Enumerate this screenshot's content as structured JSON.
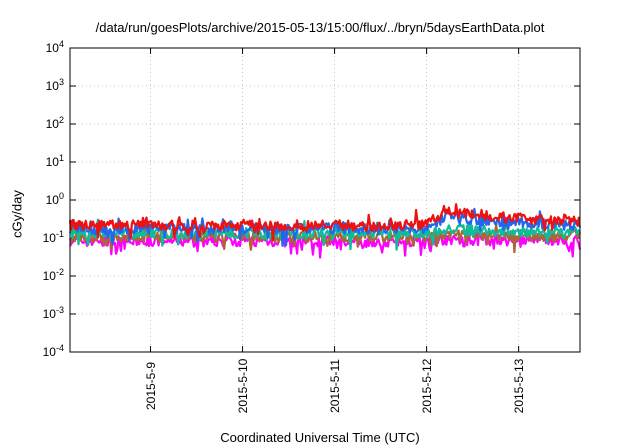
{
  "chart_data": {
    "type": "line",
    "title": "/data/run/goesPlots/archive/2015-05-13/15:00/flux/../bryn/5daysEarthData.plot",
    "xlabel": "Coordinated Universal Time (UTC)",
    "ylabel": "cGy/day",
    "y_scale": "log",
    "ylim": [
      0.0001,
      10000
    ],
    "y_ticks": [
      {
        "base": "10",
        "exp": "4"
      },
      {
        "base": "10",
        "exp": "3"
      },
      {
        "base": "10",
        "exp": "2"
      },
      {
        "base": "10",
        "exp": "1"
      },
      {
        "base": "10",
        "exp": "0"
      },
      {
        "base": "10",
        "exp": "-1"
      },
      {
        "base": "10",
        "exp": "-2"
      },
      {
        "base": "10",
        "exp": "-3"
      },
      {
        "base": "10",
        "exp": "-4"
      }
    ],
    "xlim": [
      "2015-05-08 03:00",
      "2015-05-13 16:00"
    ],
    "x_ticks": [
      "2015-5-9",
      "2015-5-10",
      "2015-5-11",
      "2015-5-12",
      "2015-5-13"
    ],
    "grid": true,
    "x": [
      "2015-05-08 03:00",
      "2015-05-08 12:00",
      "2015-05-09 00:00",
      "2015-05-09 12:00",
      "2015-05-10 00:00",
      "2015-05-10 12:00",
      "2015-05-11 00:00",
      "2015-05-11 12:00",
      "2015-05-12 00:00",
      "2015-05-12 06:00",
      "2015-05-12 12:00",
      "2015-05-13 00:00",
      "2015-05-13 12:00",
      "2015-05-13 16:00"
    ],
    "series": [
      {
        "color": "#ee1111",
        "values": [
          0.22,
          0.21,
          0.22,
          0.21,
          0.22,
          0.21,
          0.22,
          0.21,
          0.23,
          0.55,
          0.42,
          0.33,
          0.28,
          0.27
        ]
      },
      {
        "color": "#2266ee",
        "values": [
          0.18,
          0.17,
          0.18,
          0.17,
          0.18,
          0.17,
          0.18,
          0.17,
          0.19,
          0.4,
          0.3,
          0.26,
          0.22,
          0.21
        ]
      },
      {
        "color": "#11bb99",
        "values": [
          0.14,
          0.13,
          0.14,
          0.13,
          0.14,
          0.13,
          0.14,
          0.13,
          0.14,
          0.17,
          0.16,
          0.15,
          0.14,
          0.14
        ]
      },
      {
        "color": "#aa6633",
        "values": [
          0.11,
          0.105,
          0.11,
          0.105,
          0.11,
          0.105,
          0.11,
          0.105,
          0.11,
          0.12,
          0.115,
          0.11,
          0.11,
          0.11
        ]
      },
      {
        "color": "#ff00ff",
        "values": [
          0.085,
          0.08,
          0.085,
          0.08,
          0.085,
          0.08,
          0.085,
          0.08,
          0.085,
          0.09,
          0.088,
          0.085,
          0.085,
          0.085
        ]
      }
    ]
  }
}
